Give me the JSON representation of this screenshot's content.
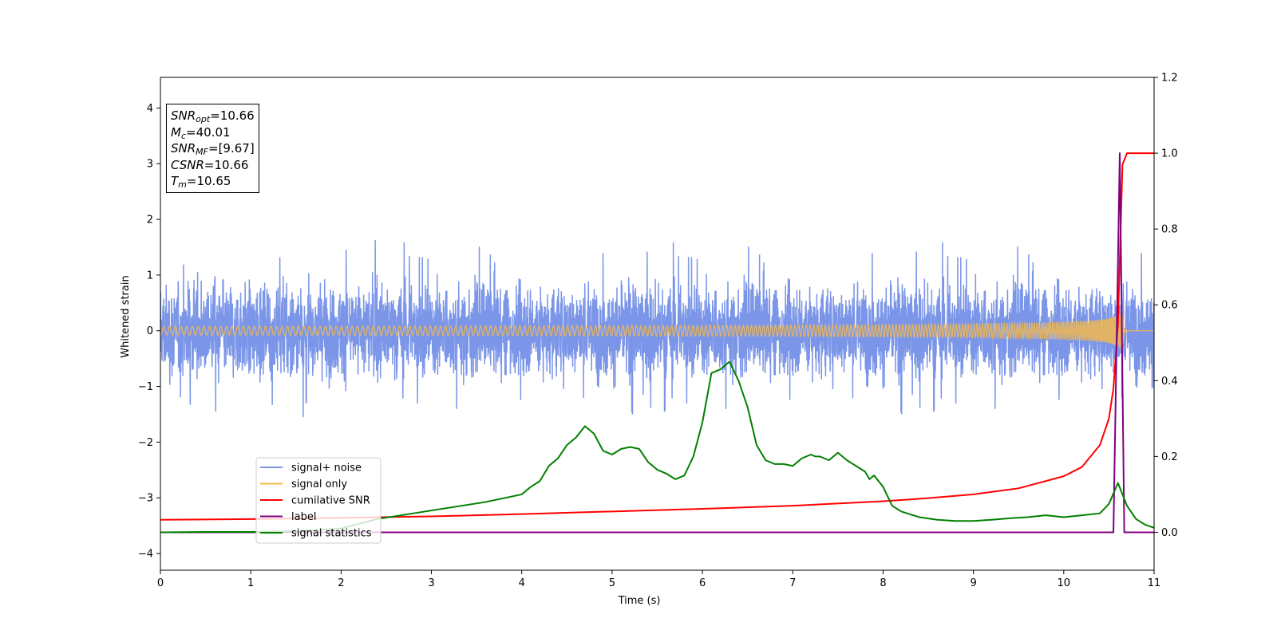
{
  "chart_data": {
    "type": "line",
    "xlabel": "Time (s)",
    "ylabel": "Whitened strain",
    "xlim": [
      0,
      11
    ],
    "ylim_left": [
      -4.3,
      4.55
    ],
    "ylim_right": [
      -0.1,
      1.2
    ],
    "x_ticks": [
      "0",
      "1",
      "2",
      "3",
      "4",
      "5",
      "6",
      "7",
      "8",
      "9",
      "10",
      "11"
    ],
    "y_left_ticks": [
      "−4",
      "−3",
      "−2",
      "−1",
      "0",
      "1",
      "2",
      "3",
      "4"
    ],
    "y_right_ticks": [
      "0.0",
      "0.2",
      "0.4",
      "0.6",
      "0.8",
      "1.0",
      "1.2"
    ],
    "legend_position": "lower-left",
    "legend": [
      "signal+ noise",
      "signal only",
      "cumilative SNR",
      "label",
      "signal statistics"
    ],
    "series": [
      {
        "name": "signal+ noise",
        "axis": "left",
        "color": "#7b96e8",
        "kind": "noise",
        "amplitude_band": [
          -1.55,
          1.65
        ]
      },
      {
        "name": "signal only",
        "axis": "left",
        "color": "#f5b84e",
        "kind": "chirp",
        "peak_time": 10.65,
        "peak_amplitude": 0.45
      },
      {
        "name": "cumilative SNR",
        "axis": "right",
        "color": "#ff0000",
        "x": [
          0,
          1,
          2,
          3,
          4,
          5,
          6,
          7,
          8,
          8.5,
          9,
          9.5,
          10,
          10.2,
          10.4,
          10.5,
          10.55,
          10.6,
          10.65,
          10.7,
          11
        ],
        "y": [
          0.033,
          0.035,
          0.038,
          0.042,
          0.048,
          0.055,
          0.062,
          0.07,
          0.082,
          0.09,
          0.1,
          0.116,
          0.148,
          0.172,
          0.23,
          0.3,
          0.38,
          0.55,
          0.97,
          1.0,
          1.0
        ]
      },
      {
        "name": "label",
        "axis": "right",
        "color": "#800080",
        "x": [
          0,
          10.55,
          10.62,
          10.67,
          10.72,
          11
        ],
        "y": [
          0,
          0,
          1.0,
          0,
          0,
          0
        ]
      },
      {
        "name": "signal statistics",
        "axis": "right",
        "color": "#008000",
        "x": [
          0,
          0.5,
          1,
          1.5,
          2,
          2.4,
          2.8,
          3.2,
          3.6,
          3.8,
          4.0,
          4.1,
          4.2,
          4.3,
          4.4,
          4.5,
          4.6,
          4.7,
          4.8,
          4.9,
          5.0,
          5.1,
          5.2,
          5.3,
          5.4,
          5.5,
          5.6,
          5.7,
          5.8,
          5.9,
          6.0,
          6.1,
          6.2,
          6.3,
          6.4,
          6.5,
          6.6,
          6.7,
          6.8,
          6.9,
          7.0,
          7.1,
          7.2,
          7.25,
          7.3,
          7.4,
          7.5,
          7.6,
          7.7,
          7.8,
          7.85,
          7.9,
          8.0,
          8.1,
          8.2,
          8.4,
          8.6,
          8.8,
          9.0,
          9.2,
          9.4,
          9.6,
          9.8,
          10.0,
          10.2,
          10.4,
          10.5,
          10.6,
          10.7,
          10.8,
          10.9,
          11.0
        ],
        "y": [
          0,
          0.001,
          0.001,
          0.003,
          0.01,
          0.035,
          0.05,
          0.065,
          0.08,
          0.09,
          0.1,
          0.12,
          0.135,
          0.175,
          0.195,
          0.23,
          0.25,
          0.28,
          0.26,
          0.215,
          0.205,
          0.22,
          0.225,
          0.22,
          0.185,
          0.165,
          0.155,
          0.14,
          0.15,
          0.2,
          0.29,
          0.42,
          0.43,
          0.45,
          0.4,
          0.33,
          0.23,
          0.19,
          0.18,
          0.18,
          0.175,
          0.195,
          0.205,
          0.2,
          0.2,
          0.19,
          0.21,
          0.19,
          0.175,
          0.16,
          0.14,
          0.15,
          0.12,
          0.07,
          0.055,
          0.04,
          0.033,
          0.03,
          0.03,
          0.033,
          0.037,
          0.04,
          0.045,
          0.04,
          0.045,
          0.05,
          0.075,
          0.13,
          0.07,
          0.035,
          0.02,
          0.012
        ]
      }
    ]
  },
  "info_box": {
    "snr_opt_symbol": "SNR",
    "snr_opt_sub": "opt",
    "snr_opt_value": "=10.66",
    "mc_symbol": "M",
    "mc_sub": "c",
    "mc_value": "=40.01",
    "snr_mf_symbol": "SNR",
    "snr_mf_sub": "MF",
    "snr_mf_value": "=[9.67]",
    "csnr_symbol": "CSNR",
    "csnr_value": "=10.66",
    "tm_symbol": "T",
    "tm_sub": "m",
    "tm_value": "=10.65"
  }
}
